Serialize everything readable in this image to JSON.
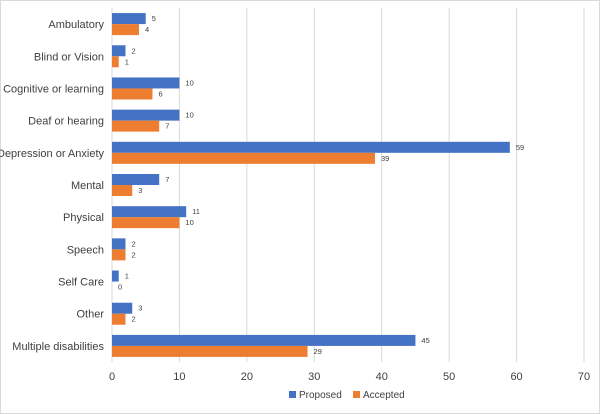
{
  "chart_data": {
    "type": "bar",
    "orientation": "horizontal",
    "title": "",
    "xlabel": "",
    "ylabel": "",
    "categories": [
      "Ambulatory",
      "Blind or Vision",
      "Cognitive or learning",
      "Deaf or hearing",
      "Depression or Anxiety",
      "Mental",
      "Physical",
      "Speech",
      "Self Care",
      "Other",
      "Multiple disabilities"
    ],
    "series": [
      {
        "name": "Proposed",
        "color": "#4472c4",
        "values": [
          5,
          2,
          10,
          10,
          59,
          7,
          11,
          2,
          1,
          3,
          45
        ]
      },
      {
        "name": "Accepted",
        "color": "#ed7d31",
        "values": [
          4,
          1,
          6,
          7,
          39,
          3,
          10,
          2,
          0,
          2,
          29
        ]
      }
    ],
    "xlim": [
      0,
      70
    ],
    "xticks": [
      0,
      10,
      20,
      30,
      40,
      50,
      60,
      70
    ],
    "grid": "vertical",
    "legend": "bottom-center"
  }
}
